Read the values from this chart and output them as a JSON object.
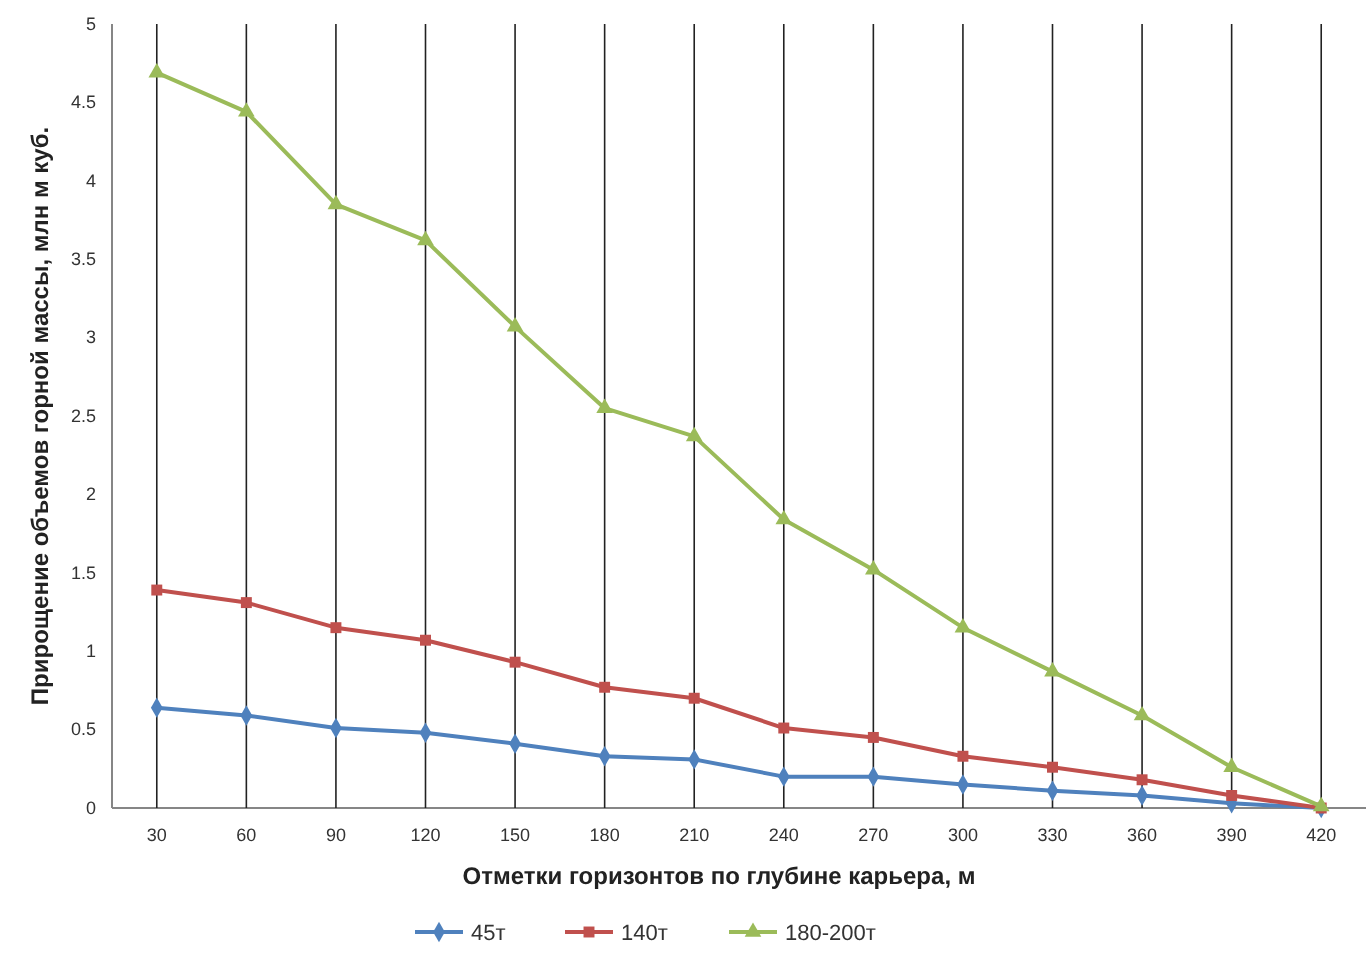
{
  "chart_data": {
    "type": "line",
    "xlabel": "Отметки горизонтов по глубине карьера, м",
    "ylabel": "Прирощение объемов горной массы, млн м куб.",
    "categories": [
      "30",
      "60",
      "90",
      "120",
      "150",
      "180",
      "210",
      "240",
      "270",
      "300",
      "330",
      "360",
      "390",
      "420"
    ],
    "ylim": [
      0,
      5
    ],
    "yticks": [
      0,
      0.5,
      1,
      1.5,
      2,
      2.5,
      3,
      3.5,
      4,
      4.5,
      5
    ],
    "legend": "bottom",
    "grid": "x",
    "series": [
      {
        "name": "45т",
        "color": "#4f81bd",
        "marker": "diamond",
        "values": [
          0.64,
          0.59,
          0.51,
          0.48,
          0.41,
          0.33,
          0.31,
          0.2,
          0.2,
          0.15,
          0.11,
          0.08,
          0.03,
          0.0
        ]
      },
      {
        "name": "140т",
        "color": "#c0504d",
        "marker": "square",
        "values": [
          1.39,
          1.31,
          1.15,
          1.07,
          0.93,
          0.77,
          0.7,
          0.51,
          0.45,
          0.33,
          0.26,
          0.18,
          0.08,
          0.0
        ]
      },
      {
        "name": "180-200т",
        "color": "#9bbb59",
        "marker": "triangle",
        "values": [
          4.69,
          4.44,
          3.85,
          3.62,
          3.07,
          2.55,
          2.37,
          1.84,
          1.52,
          1.15,
          0.87,
          0.59,
          0.26,
          0.01
        ]
      }
    ]
  }
}
